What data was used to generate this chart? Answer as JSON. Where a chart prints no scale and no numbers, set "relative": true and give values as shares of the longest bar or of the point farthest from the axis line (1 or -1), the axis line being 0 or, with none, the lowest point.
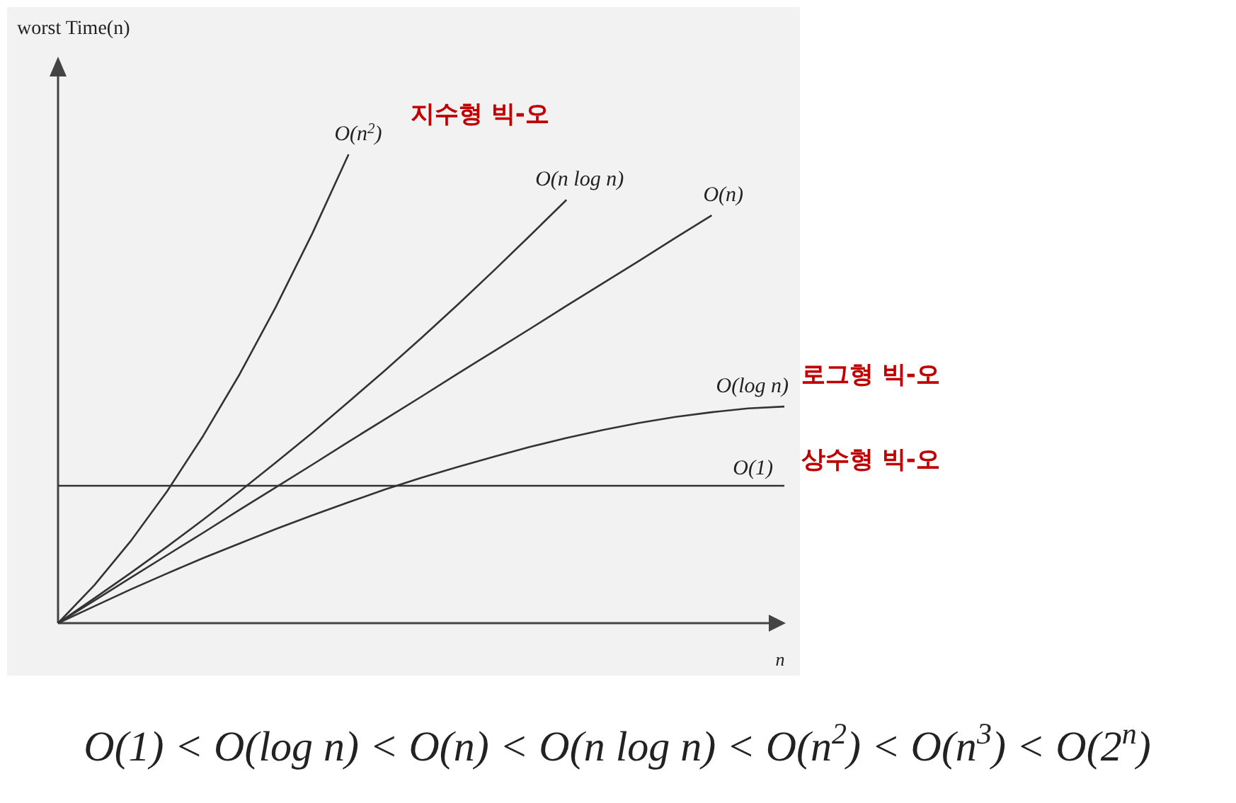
{
  "chart_data": {
    "type": "line",
    "relative": true,
    "xlabel": "n",
    "categories": [
      null,
      null,
      null,
      null,
      null,
      null,
      null,
      null,
      null,
      null,
      null,
      null,
      null,
      null,
      null,
      null,
      null,
      null,
      null,
      null,
      null
    ],
    "series": [
      {
        "name": "O(n$^{2}$)",
        "color": "#333333",
        "values": [
          0,
          0.081,
          0.175,
          0.281,
          0.4,
          0.531,
          0.675,
          0.831,
          1,
          null,
          null,
          null,
          null,
          null,
          null,
          null,
          null,
          null,
          null,
          null,
          null
        ]
      },
      {
        "name": "O(n log n)",
        "color": "#333333",
        "values": [
          0,
          0.053,
          0.107,
          0.163,
          0.221,
          0.281,
          0.343,
          0.406,
          0.472,
          0.539,
          0.608,
          0.679,
          0.752,
          0.827,
          0.903,
          null,
          null,
          null,
          null,
          null,
          null
        ]
      },
      {
        "name": "O(n)",
        "color": "#333333",
        "values": [
          0,
          0.048,
          0.097,
          0.145,
          0.193,
          0.242,
          0.29,
          0.338,
          0.387,
          0.435,
          0.483,
          0.532,
          0.58,
          0.628,
          0.677,
          0.725,
          0.773,
          0.822,
          0.87,
          null,
          null
        ]
      },
      {
        "name": "O(log n)",
        "color": "#333333",
        "values": [
          0,
          0.036,
          0.072,
          0.106,
          0.139,
          0.17,
          0.201,
          0.23,
          0.258,
          0.285,
          0.31,
          0.333,
          0.355,
          0.376,
          0.395,
          0.412,
          0.427,
          0.44,
          0.45,
          0.458,
          0.462
        ]
      },
      {
        "name": "O(1)",
        "color": "#333333",
        "values": [
          0.293,
          0.293,
          0.293,
          0.293,
          0.293,
          0.293,
          0.293,
          0.293,
          0.293,
          0.293,
          0.293,
          0.293,
          0.293,
          0.293,
          0.293,
          0.293,
          0.293,
          0.293,
          0.293,
          0.293,
          0.293
        ]
      }
    ],
    "annotations": [
      "지수형 빅-오",
      "로그형 빅-오",
      "상수형 빅-오",
      "O(1) < O(log n) < O(n) < O(n log n) < O(n$^{2}$) < O(n$^{3}$) < O(2$^{n}$)",
      "worst Time(n)"
    ]
  }
}
